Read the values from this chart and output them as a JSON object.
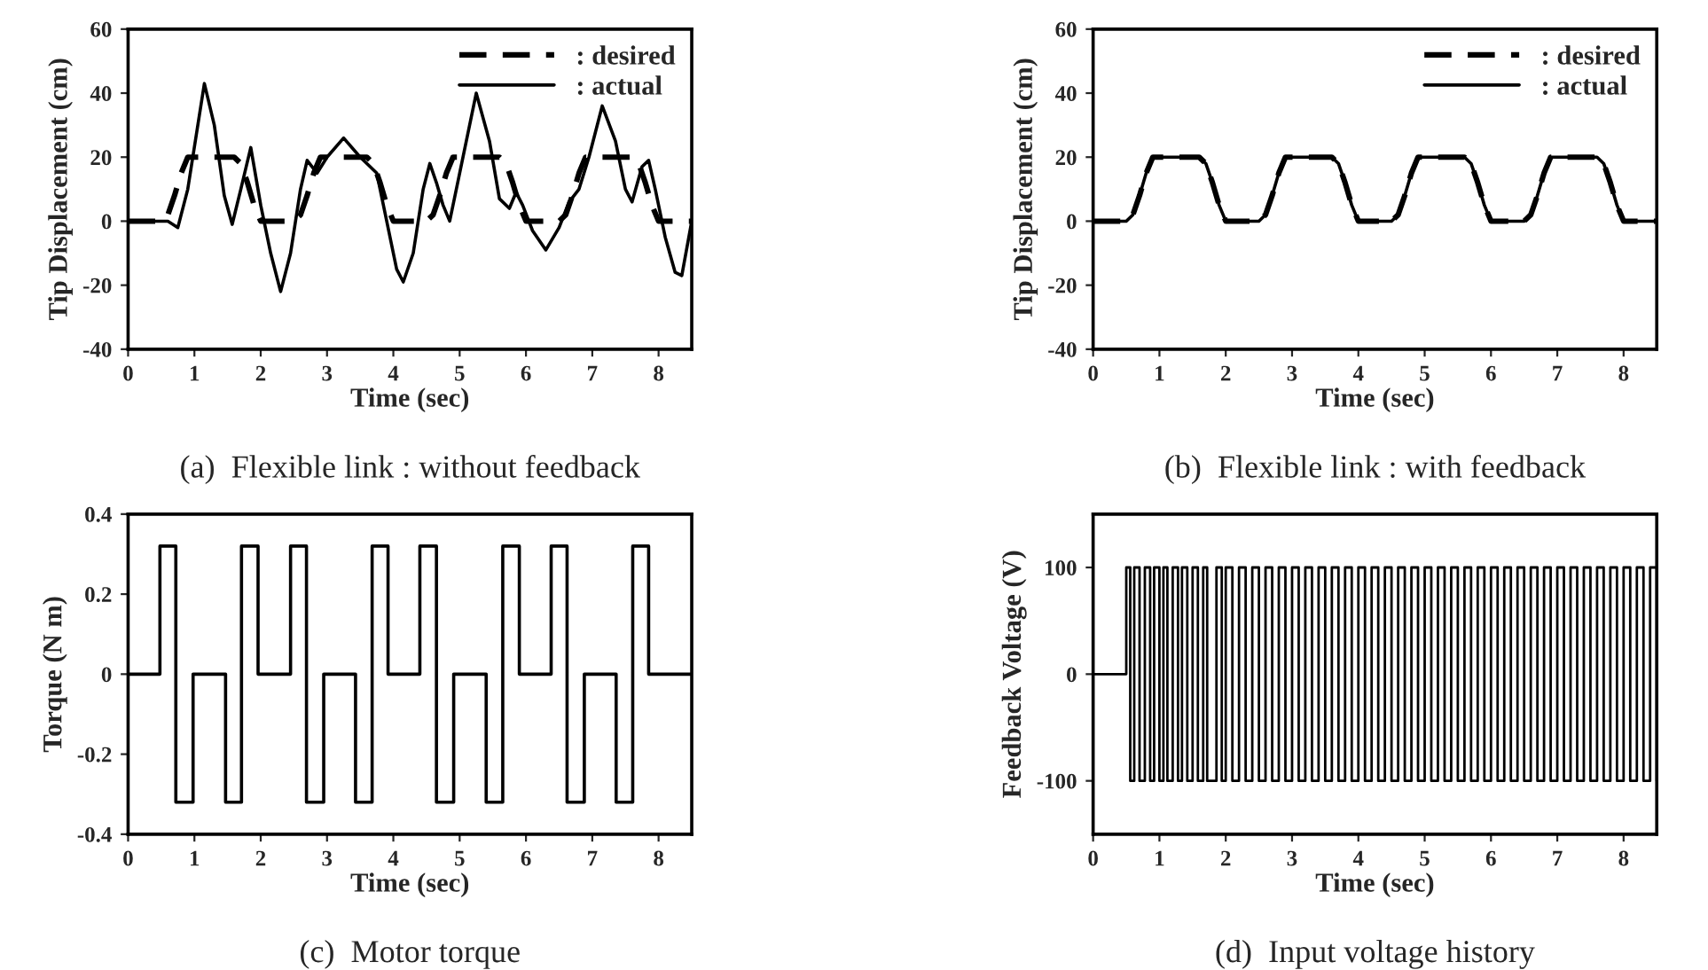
{
  "chart_data": [
    {
      "type": "line",
      "xlabel": "Time (sec)",
      "ylabel": "Tip Displacement (cm)",
      "annotations": [
        "(a)  Flexible link : without feedback"
      ],
      "xlim": [
        0,
        8.5
      ],
      "xticks": [
        0,
        1,
        2,
        3,
        4,
        5,
        6,
        7,
        8
      ],
      "ylim": [
        -40,
        60
      ],
      "yticks": [
        -40,
        -20,
        0,
        20,
        40,
        60
      ],
      "grid": false,
      "legend": "top right",
      "series": [
        {
          "name": ": desired",
          "color": "#000000",
          "line_style": "dashed",
          "x": [
            0,
            0.5,
            0.6,
            0.7,
            0.8,
            0.9,
            1.6,
            1.7,
            1.8,
            1.9,
            2.0,
            2.5,
            2.6,
            2.7,
            2.8,
            2.9,
            3.6,
            3.7,
            3.8,
            3.9,
            4.0,
            4.5,
            4.6,
            4.7,
            4.8,
            4.9,
            5.6,
            5.7,
            5.8,
            5.9,
            6.0,
            6.5,
            6.6,
            6.7,
            6.8,
            6.9,
            7.6,
            7.7,
            7.8,
            7.9,
            8.0,
            8.5
          ],
          "values": [
            0,
            0,
            2,
            8,
            15,
            20,
            20,
            18,
            12,
            5,
            0,
            0,
            2,
            8,
            15,
            20,
            20,
            18,
            12,
            5,
            0,
            0,
            2,
            8,
            15,
            20,
            20,
            18,
            12,
            5,
            0,
            0,
            2,
            8,
            15,
            20,
            20,
            18,
            12,
            5,
            0,
            0
          ]
        },
        {
          "name": ": actual",
          "color": "#000000",
          "line_style": "solid",
          "x": [
            0,
            0.6,
            0.75,
            0.9,
            1.15,
            1.3,
            1.45,
            1.57,
            1.7,
            1.85,
            2.0,
            2.15,
            2.3,
            2.45,
            2.6,
            2.7,
            2.85,
            3.0,
            3.25,
            3.5,
            3.65,
            3.75,
            3.9,
            4.05,
            4.15,
            4.3,
            4.45,
            4.55,
            4.65,
            4.75,
            4.85,
            5.0,
            5.25,
            5.45,
            5.6,
            5.75,
            5.85,
            5.95,
            6.1,
            6.3,
            6.5,
            6.65,
            6.8,
            6.95,
            7.15,
            7.35,
            7.5,
            7.6,
            7.75,
            7.85,
            7.95,
            8.1,
            8.25,
            8.35,
            8.5
          ],
          "values": [
            0,
            0,
            -2,
            10,
            43,
            30,
            8,
            -1,
            10,
            23,
            5,
            -10,
            -22,
            -10,
            10,
            19,
            15,
            20,
            26,
            20,
            17,
            15,
            0,
            -15,
            -19,
            -10,
            10,
            18,
            12,
            5,
            0,
            15,
            40,
            25,
            7,
            4,
            9,
            5,
            -3,
            -9,
            -2,
            6,
            10,
            20,
            36,
            25,
            10,
            6,
            17,
            19,
            10,
            -5,
            -16,
            -17,
            0
          ]
        }
      ]
    },
    {
      "type": "line",
      "xlabel": "Time (sec)",
      "ylabel": "Tip Displacement (cm)",
      "annotations": [
        "(b)  Flexible link : with feedback"
      ],
      "xlim": [
        0,
        8.5
      ],
      "xticks": [
        0,
        1,
        2,
        3,
        4,
        5,
        6,
        7,
        8
      ],
      "ylim": [
        -40,
        60
      ],
      "yticks": [
        -40,
        -20,
        0,
        20,
        40,
        60
      ],
      "grid": false,
      "legend": "top right",
      "series": [
        {
          "name": ": desired",
          "color": "#000000",
          "line_style": "dashed",
          "x": [
            0,
            0.5,
            0.6,
            0.7,
            0.8,
            0.9,
            1.6,
            1.7,
            1.8,
            1.9,
            2.0,
            2.5,
            2.6,
            2.7,
            2.8,
            2.9,
            3.6,
            3.7,
            3.8,
            3.9,
            4.0,
            4.5,
            4.6,
            4.7,
            4.8,
            4.9,
            5.6,
            5.7,
            5.8,
            5.9,
            6.0,
            6.5,
            6.6,
            6.7,
            6.8,
            6.9,
            7.6,
            7.7,
            7.8,
            7.9,
            8.0,
            8.5
          ],
          "values": [
            0,
            0,
            2,
            8,
            15,
            20,
            20,
            18,
            12,
            5,
            0,
            0,
            2,
            8,
            15,
            20,
            20,
            18,
            12,
            5,
            0,
            0,
            2,
            8,
            15,
            20,
            20,
            18,
            12,
            5,
            0,
            0,
            2,
            8,
            15,
            20,
            20,
            18,
            12,
            5,
            0,
            0
          ]
        },
        {
          "name": ": actual",
          "color": "#000000",
          "line_style": "solid",
          "x": [
            0,
            0.5,
            0.6,
            0.7,
            0.8,
            0.9,
            1.6,
            1.7,
            1.8,
            1.9,
            2.0,
            2.5,
            2.6,
            2.7,
            2.8,
            2.9,
            3.6,
            3.7,
            3.8,
            3.9,
            4.0,
            4.5,
            4.6,
            4.7,
            4.8,
            4.9,
            5.6,
            5.7,
            5.8,
            5.9,
            6.0,
            6.5,
            6.6,
            6.7,
            6.8,
            6.9,
            7.6,
            7.7,
            7.8,
            7.9,
            8.0,
            8.5
          ],
          "values": [
            0,
            0,
            2,
            8,
            15,
            20,
            20,
            18,
            12,
            5,
            0,
            0,
            2,
            8,
            15,
            20,
            20,
            18,
            12,
            5,
            0,
            0,
            2,
            8,
            15,
            20,
            20,
            18,
            12,
            5,
            0,
            0,
            2,
            8,
            15,
            20,
            20,
            18,
            12,
            5,
            0,
            0
          ]
        }
      ]
    },
    {
      "type": "step",
      "xlabel": "Time (sec)",
      "ylabel": "Torque (N m)",
      "annotations": [
        "(c)  Motor torque"
      ],
      "xlim": [
        0,
        8.5
      ],
      "xticks": [
        0,
        1,
        2,
        3,
        4,
        5,
        6,
        7,
        8
      ],
      "ylim": [
        -0.4,
        0.4
      ],
      "yticks": [
        -0.4,
        -0.2,
        0,
        0.2,
        0.4
      ],
      "grid": false,
      "series": [
        {
          "color": "#000000",
          "line_style": "solid",
          "x": [
            0,
            0.48,
            0.72,
            0.98,
            1.47,
            1.71,
            1.96,
            2.45,
            2.69,
            2.95,
            3.43,
            3.68,
            3.92,
            4.4,
            4.65,
            4.91,
            5.4,
            5.65,
            5.9,
            6.38,
            6.62,
            6.88,
            7.36,
            7.61,
            7.85,
            8.5
          ],
          "values": [
            0,
            0.32,
            -0.32,
            0,
            -0.32,
            0.32,
            0,
            0.32,
            -0.32,
            0,
            -0.32,
            0.32,
            0,
            0.32,
            -0.32,
            0,
            -0.32,
            0.32,
            0,
            0.32,
            -0.32,
            0,
            -0.32,
            0.32,
            0,
            0
          ]
        }
      ]
    },
    {
      "type": "step",
      "xlabel": "Time (sec)",
      "ylabel": "Feedback Voltage (V)",
      "annotations": [
        "(d)  Input voltage history"
      ],
      "xlim": [
        0,
        8.5
      ],
      "xticks": [
        0,
        1,
        2,
        3,
        4,
        5,
        6,
        7,
        8
      ],
      "ylim": [
        -150,
        150
      ],
      "yticks": [
        -100,
        0,
        100
      ],
      "grid": false,
      "series": [
        {
          "color": "#000000",
          "line_style": "solid",
          "x": [
            0,
            0.5,
            0.56,
            0.62,
            0.7,
            0.78,
            0.86,
            0.92,
            1.0,
            1.06,
            1.12,
            1.2,
            1.28,
            1.34,
            1.42,
            1.5,
            1.58,
            1.66,
            1.72,
            1.86,
            1.94,
            2.0,
            2.1,
            2.2,
            2.3,
            2.4,
            2.5,
            2.6,
            2.7,
            2.8,
            2.9,
            3.0,
            3.1,
            3.2,
            3.3,
            3.4,
            3.5,
            3.6,
            3.7,
            3.8,
            3.9,
            4.0,
            4.1,
            4.2,
            4.3,
            4.4,
            4.5,
            4.6,
            4.7,
            4.8,
            4.9,
            5.0,
            5.1,
            5.2,
            5.3,
            5.4,
            5.5,
            5.6,
            5.7,
            5.8,
            5.9,
            6.0,
            6.1,
            6.2,
            6.3,
            6.4,
            6.5,
            6.6,
            6.7,
            6.8,
            6.9,
            7.0,
            7.1,
            7.2,
            7.3,
            7.4,
            7.5,
            7.6,
            7.7,
            7.8,
            7.9,
            8.0,
            8.1,
            8.2,
            8.3,
            8.4,
            8.5
          ],
          "values": [
            0,
            100,
            -100,
            100,
            -100,
            100,
            -100,
            100,
            -100,
            100,
            -100,
            100,
            -100,
            100,
            -100,
            100,
            -100,
            100,
            -100,
            100,
            -100,
            100,
            -100,
            100,
            -100,
            100,
            -100,
            100,
            -100,
            100,
            -100,
            100,
            -100,
            100,
            -100,
            100,
            -100,
            100,
            -100,
            100,
            -100,
            100,
            -100,
            100,
            -100,
            100,
            -100,
            100,
            -100,
            100,
            -100,
            100,
            -100,
            100,
            -100,
            100,
            -100,
            100,
            -100,
            100,
            -100,
            100,
            -100,
            100,
            -100,
            100,
            -100,
            100,
            -100,
            100,
            -100,
            100,
            -100,
            100,
            -100,
            100,
            -100,
            100,
            -100,
            100,
            -100,
            100,
            -100,
            100,
            -100,
            100,
            -100
          ]
        }
      ]
    }
  ]
}
